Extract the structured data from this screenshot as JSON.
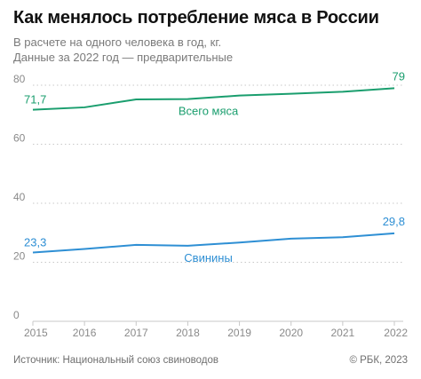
{
  "header": {
    "title": "Как менялось потребление мяса в России",
    "subtitle_line1": "В расчете на одного человека в год, кг.",
    "subtitle_line2": "Данные за 2022 год — предварительные"
  },
  "footer": {
    "source": "Источник: Национальный союз свиноводов",
    "copyright": "© РБК, 2023"
  },
  "chart_data": {
    "type": "line",
    "x": [
      "2015",
      "2016",
      "2017",
      "2018",
      "2019",
      "2020",
      "2021",
      "2022"
    ],
    "yticks": [
      "0",
      "20",
      "40",
      "60",
      "80"
    ],
    "ylim": [
      0,
      82
    ],
    "grid": "horizontal-dotted",
    "series": [
      {
        "name": "Всего мяса",
        "color": "#1a9e6e",
        "values": [
          71.7,
          72.5,
          75.2,
          75.3,
          76.5,
          77.1,
          77.8,
          79
        ],
        "start_label": "71,7",
        "end_label": "79"
      },
      {
        "name": "Свинины",
        "color": "#2e8fd4",
        "values": [
          23.3,
          24.5,
          25.9,
          25.6,
          26.7,
          28.0,
          28.5,
          29.8
        ],
        "start_label": "23,3",
        "end_label": "29,8"
      }
    ]
  }
}
